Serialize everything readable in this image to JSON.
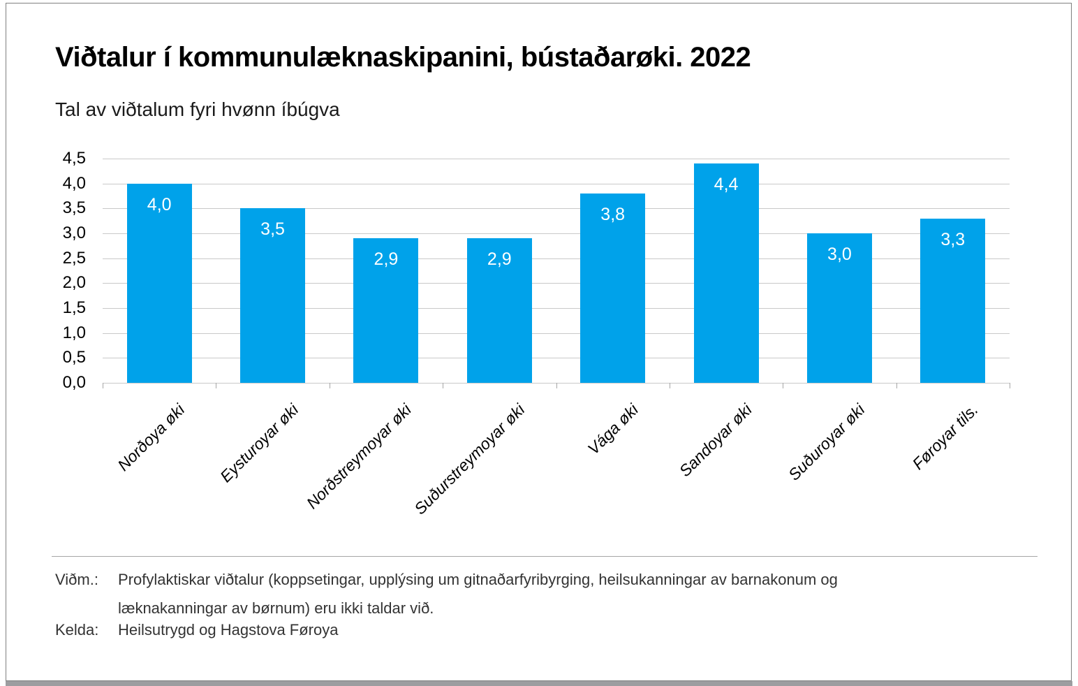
{
  "header": {
    "title": "Viðtalur í kommunulæknaskipanini, bústaðarøki. 2022",
    "subtitle": "Tal av viðtalum fyri hvønn íbúgva"
  },
  "chart_data": {
    "type": "bar",
    "title": "Viðtalur í kommunulæknaskipanini, bústaðarøki. 2022",
    "subtitle": "Tal av viðtalum fyri hvønn íbúgva",
    "categories": [
      "Norðoya øki",
      "Eysturoyar øki",
      "Norðstreymoyar øki",
      "Suðurstreymoyar øki",
      "Vága øki",
      "Sandoyar øki",
      "Suðuroyar øki",
      "Føroyar tils."
    ],
    "values": [
      4.0,
      3.5,
      2.9,
      2.9,
      3.8,
      4.4,
      3.0,
      3.3
    ],
    "value_labels": [
      "4,0",
      "3,5",
      "2,9",
      "2,9",
      "3,8",
      "4,4",
      "3,0",
      "3,3"
    ],
    "xlabel": "",
    "ylabel": "",
    "ylim": [
      0,
      4.5
    ],
    "ytick_step": 0.5,
    "ytick_labels": [
      "0,0",
      "0,5",
      "1,0",
      "1,5",
      "2,0",
      "2,5",
      "3,0",
      "3,5",
      "4,0",
      "4,5"
    ],
    "grid": true,
    "legend": "none",
    "bar_color": "#00a2ea",
    "value_label_color": "#ffffff"
  },
  "footer": {
    "note_label": "Viðm.:",
    "note_lines": [
      "Profylaktiskar viðtalur (koppsetingar, upplýsing um gitnaðarfyribyrging, heilsukanningar av barnakonum og",
      "læknakanningar av børnum) eru ikki taldar við."
    ],
    "source_label": "Kelda:",
    "source_text": "Heilsutrygd og Hagstova Føroya"
  }
}
